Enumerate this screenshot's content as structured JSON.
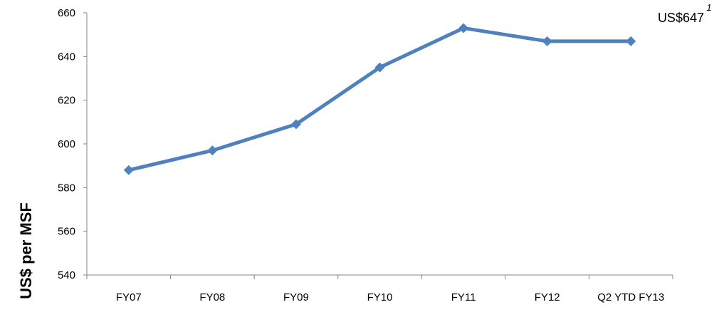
{
  "chart_data": {
    "type": "line",
    "categories": [
      "FY07",
      "FY08",
      "FY09",
      "FY10",
      "FY11",
      "FY12",
      "Q2 YTD FY13"
    ],
    "series": [
      {
        "values": [
          588,
          597,
          609,
          635,
          653,
          647,
          647
        ],
        "color": "#4F81BD",
        "marker": "diamond"
      }
    ],
    "title": "",
    "xlabel": "",
    "ylabel": "US$ per MSF",
    "ylim": [
      540,
      660
    ],
    "yticks": [
      540,
      560,
      580,
      600,
      620,
      640,
      660
    ],
    "grid": false,
    "annotations": [
      {
        "text": "US$647",
        "superscript": "1",
        "category": "Q2 YTD FY13"
      }
    ]
  }
}
